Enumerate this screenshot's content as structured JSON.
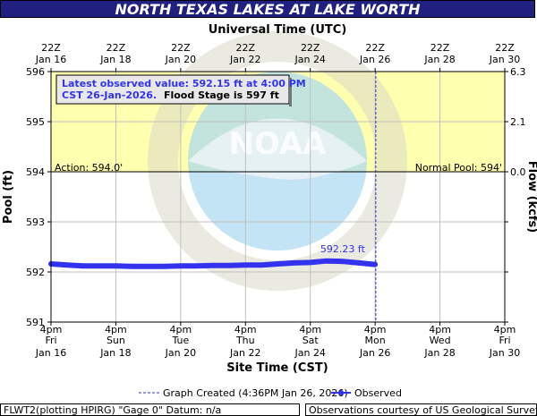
{
  "title": "NORTH TEXAS LAKES AT LAKE WORTH",
  "top_axis_title": "Universal Time (UTC)",
  "bottom_axis_title": "Site Time (CST)",
  "left_axis_title": "Pool (ft)",
  "right_axis_title": "Flow (kcfs)",
  "top_ticks": [
    {
      "time": "22Z",
      "date": "Jan 16"
    },
    {
      "time": "22Z",
      "date": "Jan 18"
    },
    {
      "time": "22Z",
      "date": "Jan 20"
    },
    {
      "time": "22Z",
      "date": "Jan 22"
    },
    {
      "time": "22Z",
      "date": "Jan 24"
    },
    {
      "time": "22Z",
      "date": "Jan 26"
    },
    {
      "time": "22Z",
      "date": "Jan 28"
    },
    {
      "time": "22Z",
      "date": "Jan 30"
    }
  ],
  "bottom_ticks": [
    {
      "time": "4pm",
      "day": "Fri",
      "date": "Jan 16"
    },
    {
      "time": "4pm",
      "day": "Sun",
      "date": "Jan 18"
    },
    {
      "time": "4pm",
      "day": "Tue",
      "date": "Jan 20"
    },
    {
      "time": "4pm",
      "day": "Thu",
      "date": "Jan 22"
    },
    {
      "time": "4pm",
      "day": "Sat",
      "date": "Jan 24"
    },
    {
      "time": "4pm",
      "day": "Mon",
      "date": "Jan 26"
    },
    {
      "time": "4pm",
      "day": "Wed",
      "date": "Jan 28"
    },
    {
      "time": "4pm",
      "day": "Fri",
      "date": "Jan 30"
    }
  ],
  "left_ticks": [
    "596",
    "595",
    "594",
    "593",
    "592",
    "591"
  ],
  "right_ticks": [
    "6.3",
    "2.1",
    "0.0",
    "n/a",
    "n/a",
    "n/a"
  ],
  "annotations": {
    "latest_line1": "Latest observed value: 592.15 ft at 4:00 PM",
    "latest_line2": "CST 26-Jan-2026.",
    "flood_stage": "Flood Stage is 597 ft",
    "action": "Action: 594.0'",
    "normal_pool": "Normal Pool: 594'",
    "peak_label": "592.23 ft"
  },
  "legend": {
    "graph_created": "Graph Created (4:36PM Jan 26, 2026)",
    "observed": "Observed"
  },
  "footer": {
    "left": "FLWT2(plotting HPIRG) \"Gage 0\" Datum: n/a",
    "right": "Observations courtesy of US Geological Survey"
  },
  "watermark_text": "NOAA",
  "colors": {
    "title_bg": "#202080",
    "flood_zone": "#ffffb0",
    "observed_line": "#3333ee",
    "created_line": "#3333cc",
    "grid": "#c0c0c0"
  },
  "chart_data": {
    "type": "line",
    "x_unit": "days from Jan 16 4pm CST",
    "xlim": [
      0,
      14
    ],
    "ylim": [
      591,
      596
    ],
    "ylabel": "Pool (ft)",
    "y2label": "Flow (kcfs)",
    "action_stage": 594.0,
    "normal_pool": 594.0,
    "flood_stage": 597,
    "graph_created_x": 10.02,
    "series": [
      {
        "name": "Observed",
        "x": [
          0,
          0.5,
          1,
          1.5,
          2,
          2.5,
          3,
          3.5,
          4,
          4.5,
          5,
          5.5,
          6,
          6.5,
          7,
          7.5,
          8,
          8.5,
          9,
          9.5,
          10
        ],
        "values": [
          592.16,
          592.14,
          592.12,
          592.12,
          592.12,
          592.11,
          592.11,
          592.11,
          592.12,
          592.12,
          592.13,
          592.13,
          592.14,
          592.14,
          592.16,
          592.18,
          592.19,
          592.22,
          592.21,
          592.18,
          592.15
        ]
      }
    ],
    "peak": {
      "x": 9,
      "y": 592.23
    }
  }
}
